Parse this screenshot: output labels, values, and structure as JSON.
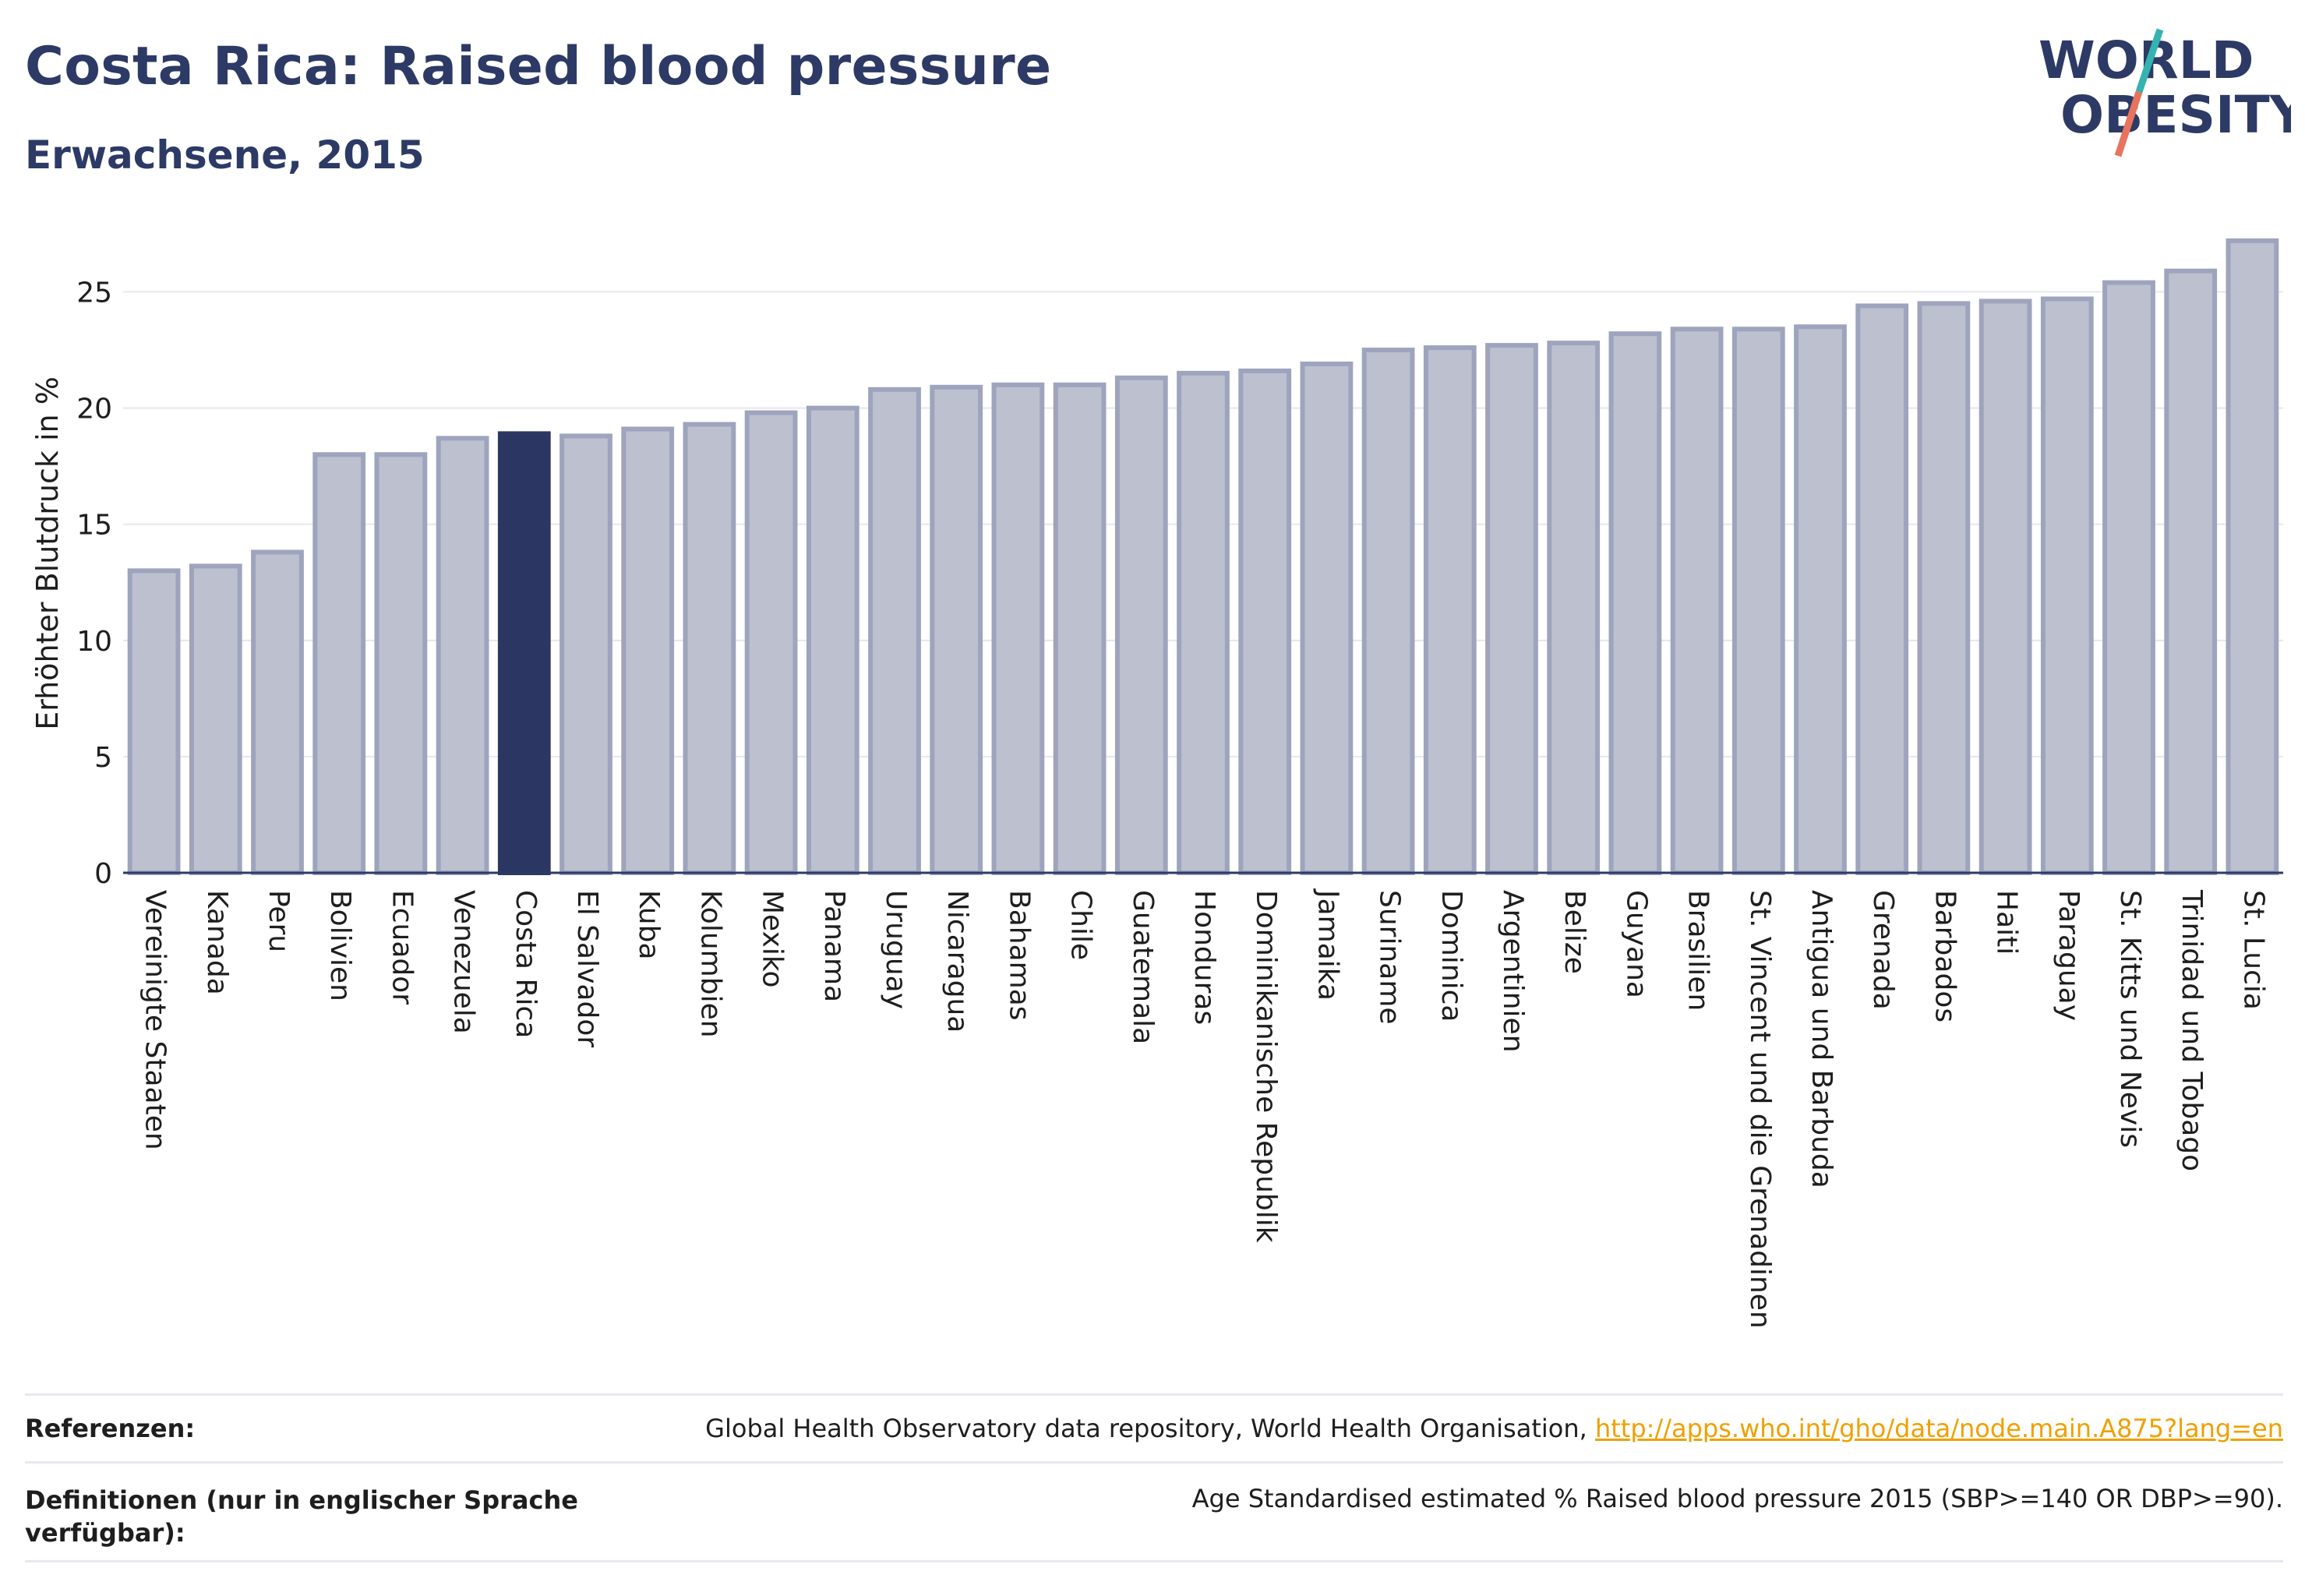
{
  "header": {
    "title": "Costa Rica: Raised blood pressure",
    "subtitle": "Erwachsene, 2015"
  },
  "logo": {
    "line1": "WORLD",
    "line2": "OBESITY"
  },
  "colors": {
    "bar": "#bcc0cf",
    "bar_stroke": "#9ea4bd",
    "highlight": "#2c3663",
    "grid": "#e6e8ef",
    "text": "#2d3a66",
    "link": "#f0a000",
    "logo_teal": "#36b2b0",
    "logo_coral": "#e8735e"
  },
  "chart_data": {
    "type": "bar",
    "title": "Costa Rica: Raised blood pressure",
    "subtitle": "Erwachsene, 2015",
    "ylabel": "Erhöhter Blutdruck in %",
    "xlabel": "",
    "ylim": [
      0,
      27.5
    ],
    "yticks": [
      0,
      5,
      10,
      15,
      20,
      25
    ],
    "grid": true,
    "highlight": "Costa Rica",
    "categories": [
      "Vereinigte Staaten",
      "Kanada",
      "Peru",
      "Bolivien",
      "Ecuador",
      "Venezuela",
      "Costa Rica",
      "El Salvador",
      "Kuba",
      "Kolumbien",
      "Mexiko",
      "Panama",
      "Uruguay",
      "Nicaragua",
      "Bahamas",
      "Chile",
      "Guatemala",
      "Honduras",
      "Dominikanische Republik",
      "Jamaika",
      "Suriname",
      "Dominica",
      "Argentinien",
      "Belize",
      "Guyana",
      "Brasilien",
      "St. Vincent und die Grenadinen",
      "Antigua und Barbuda",
      "Grenada",
      "Barbados",
      "Haiti",
      "Paraguay",
      "St. Kitts und Nevis",
      "Trinidad und Tobago",
      "St. Lucia"
    ],
    "values": [
      13.0,
      13.2,
      13.8,
      18.0,
      18.0,
      18.7,
      18.9,
      18.8,
      19.1,
      19.3,
      19.8,
      20.0,
      20.8,
      20.9,
      21.0,
      21.0,
      21.3,
      21.5,
      21.6,
      21.9,
      22.5,
      22.6,
      22.7,
      22.8,
      23.2,
      23.4,
      23.4,
      23.5,
      24.4,
      24.5,
      24.6,
      24.7,
      25.4,
      25.9,
      27.2
    ]
  },
  "footer": {
    "ref_label": "Referenzen:",
    "ref_text": "Global Health Observatory data repository, World Health Organisation,",
    "ref_link": "http://apps.who.int/gho/data/node.main.A875?lang=en",
    "def_label": "Definitionen (nur in englischer Sprache verfügbar):",
    "def_text": "Age Standardised estimated % Raised blood pressure 2015 (SBP>=140 OR DBP>=90)."
  }
}
